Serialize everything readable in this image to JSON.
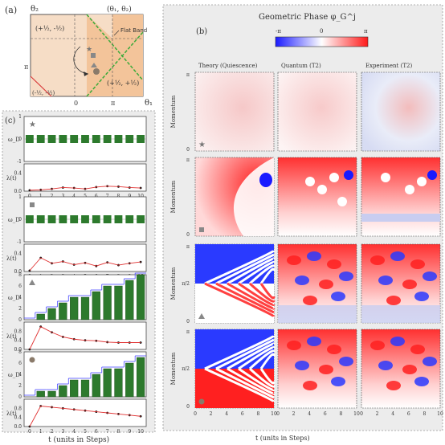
{
  "panel_a": {
    "label": "(a)",
    "axis_y_label": "θ₂",
    "axis_x_label": "θ₁",
    "corner_label": "(θ₁, θ₂)",
    "flat_band_label": "Flat Band",
    "tick_x_0": "0",
    "tick_x_pi": "π",
    "tick_y_pi": "π",
    "quadrant_tl": "(+½, -½)",
    "quadrant_br": "(+½, +½)",
    "quadrant_bl": "(-½, -½)"
  },
  "panel_b": {
    "label": "(b)",
    "colorbar_title": "Geometric Phase φ_G^j",
    "colorbar_ticks": [
      "-π",
      "0",
      "π"
    ],
    "colorbar_colors": [
      "#1a1aff",
      "#ffffff",
      "#ff1a1a"
    ],
    "column_titles": [
      "Theory (Quiescence)",
      "Quantum (T2)",
      "Experiment (T2)"
    ],
    "row_ylabel": "Momentum",
    "row_y_ticks": [
      "0",
      "π/2",
      "π"
    ],
    "x_ticks": [
      "0",
      "2",
      "4",
      "6",
      "8",
      "10"
    ],
    "x_label": "t (units in Steps)",
    "row_markers": [
      "star",
      "square",
      "triangle",
      "circle"
    ]
  },
  "panel_c": {
    "label": "(c)",
    "y_label_top": "ω_D",
    "y_label_bottom": "λ(t)",
    "x_label": "t (units in Steps)",
    "x_ticks": [
      "0",
      "1",
      "2",
      "3",
      "4",
      "5",
      "6",
      "7",
      "8",
      "9",
      "10"
    ],
    "markers": [
      "star",
      "square",
      "triangle",
      "circle"
    ]
  },
  "chart_data": [
    {
      "type": "bar",
      "name_marker": "star",
      "categories": [
        "0",
        "1",
        "2",
        "3",
        "4",
        "5",
        "6",
        "7",
        "8",
        "9",
        "10"
      ],
      "series": [
        {
          "values": [
            0,
            0,
            0,
            0,
            0,
            0,
            0,
            0,
            0,
            0,
            0
          ]
        }
      ],
      "ylabel": "ω_D",
      "ylim": [
        -1,
        1
      ],
      "y_ticks": [
        "-1",
        "0",
        "1"
      ]
    },
    {
      "type": "line",
      "name_marker": "star",
      "x": [
        0,
        1,
        2,
        3,
        4,
        5,
        6,
        7,
        8,
        9,
        10
      ],
      "y": [
        0.02,
        0.03,
        0.05,
        0.08,
        0.07,
        0.05,
        0.09,
        0.11,
        0.1,
        0.08,
        0.07
      ],
      "ylabel": "λ(t)",
      "ylim": [
        0,
        0.6
      ],
      "y_ticks": [
        "0.0",
        "0.4"
      ]
    },
    {
      "type": "bar",
      "name_marker": "square",
      "categories": [
        "0",
        "1",
        "2",
        "3",
        "4",
        "5",
        "6",
        "7",
        "8",
        "9",
        "10"
      ],
      "series": [
        {
          "values": [
            0,
            0,
            0,
            0,
            0,
            0,
            0,
            0,
            0,
            0,
            0
          ]
        }
      ],
      "ylabel": "ω_D",
      "ylim": [
        -1,
        1
      ],
      "y_ticks": [
        "-1",
        "0",
        "1"
      ]
    },
    {
      "type": "line",
      "name_marker": "square",
      "x": [
        0,
        1,
        2,
        3,
        4,
        5,
        6,
        7,
        8,
        9,
        10
      ],
      "y": [
        0.02,
        0.3,
        0.18,
        0.22,
        0.15,
        0.19,
        0.12,
        0.2,
        0.14,
        0.18,
        0.21
      ],
      "ylabel": "λ(t)",
      "ylim": [
        0,
        0.6
      ],
      "y_ticks": [
        "0.0",
        "0.4"
      ]
    },
    {
      "type": "bar",
      "name_marker": "triangle",
      "categories": [
        "0",
        "1",
        "2",
        "3",
        "4",
        "5",
        "6",
        "7",
        "8",
        "9",
        "10"
      ],
      "series": [
        {
          "name": "bars",
          "values": [
            0,
            1,
            2,
            3,
            4,
            4,
            5,
            6,
            6,
            7,
            8
          ]
        }
      ],
      "ylabel": "ω_D",
      "ylim": [
        0,
        8
      ],
      "y_ticks": [
        "0",
        "2",
        "4",
        "6",
        "8"
      ]
    },
    {
      "type": "line",
      "name_marker": "triangle",
      "x": [
        0,
        1,
        2,
        3,
        4,
        5,
        6,
        7,
        8,
        9,
        10
      ],
      "y": [
        0.0,
        1.0,
        0.75,
        0.55,
        0.45,
        0.4,
        0.38,
        0.32,
        0.3,
        0.3,
        0.3
      ],
      "ylabel": "λ(t)",
      "ylim": [
        0,
        1.2
      ],
      "y_ticks": [
        "0.0",
        "0.4",
        "0.8"
      ]
    },
    {
      "type": "bar",
      "name_marker": "circle",
      "categories": [
        "0",
        "1",
        "2",
        "3",
        "4",
        "5",
        "6",
        "7",
        "8",
        "9",
        "10"
      ],
      "series": [
        {
          "name": "bars",
          "values": [
            0,
            1,
            1,
            2,
            3,
            3,
            4,
            5,
            5,
            6,
            7
          ]
        }
      ],
      "ylabel": "ω_D",
      "ylim": [
        0,
        8
      ],
      "y_ticks": [
        "0",
        "2",
        "4",
        "6",
        "8"
      ]
    },
    {
      "type": "line",
      "name_marker": "circle",
      "x": [
        0,
        1,
        2,
        3,
        4,
        5,
        6,
        7,
        8,
        9,
        10
      ],
      "y": [
        0.0,
        0.9,
        0.85,
        0.8,
        0.75,
        0.7,
        0.65,
        0.6,
        0.55,
        0.5,
        0.45
      ],
      "ylabel": "λ(t)",
      "ylim": [
        0,
        1.2
      ],
      "y_ticks": [
        "0.0",
        "0.4",
        "0.8"
      ]
    }
  ]
}
